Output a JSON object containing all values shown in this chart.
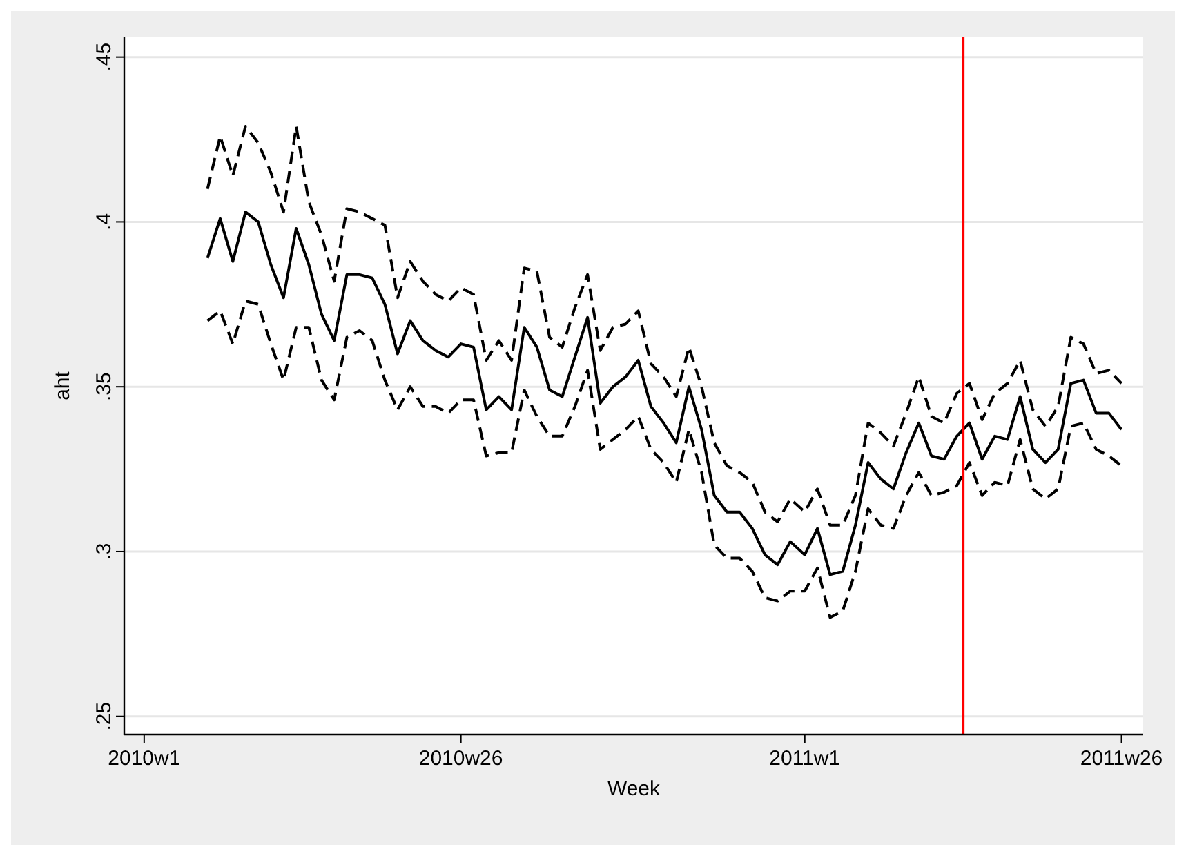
{
  "chart_data": {
    "type": "line",
    "xlabel": "Week",
    "ylabel": "aht",
    "x": [
      "2010-02-05",
      "2010-02-12",
      "2010-02-19",
      "2010-02-26",
      "2010-03-05",
      "2010-03-12",
      "2010-03-19",
      "2010-03-26",
      "2010-04-02",
      "2010-04-09",
      "2010-04-16",
      "2010-04-23",
      "2010-04-30",
      "2010-05-07",
      "2010-05-14",
      "2010-05-21",
      "2010-05-28",
      "2010-06-04",
      "2010-06-11",
      "2010-06-18",
      "2010-06-25",
      "2010-07-02",
      "2010-07-09",
      "2010-07-16",
      "2010-07-23",
      "2010-07-30",
      "2010-08-06",
      "2010-08-13",
      "2010-08-20",
      "2010-08-27",
      "2010-09-03",
      "2010-09-10",
      "2010-09-17",
      "2010-09-24",
      "2010-10-01",
      "2010-10-08",
      "2010-10-15",
      "2010-10-22",
      "2010-10-29",
      "2010-11-05",
      "2010-11-12",
      "2010-11-19",
      "2010-11-26",
      "2010-12-03",
      "2010-12-10",
      "2010-12-17",
      "2010-12-24",
      "2011-01-01",
      "2011-01-08",
      "2011-01-15",
      "2011-01-22",
      "2011-01-29",
      "2011-02-05",
      "2011-02-12",
      "2011-02-19",
      "2011-02-26",
      "2011-03-05",
      "2011-03-12",
      "2011-03-19",
      "2011-03-26",
      "2011-04-02",
      "2011-04-09",
      "2011-04-16",
      "2011-04-23",
      "2011-04-30",
      "2011-05-07",
      "2011-05-14",
      "2011-05-21",
      "2011-05-28",
      "2011-06-04",
      "2011-06-11",
      "2011-06-18",
      "2011-06-25"
    ],
    "series": [
      {
        "color": "#000000",
        "line_style": "solid",
        "values": [
          0.389,
          0.401,
          0.388,
          0.403,
          0.4,
          0.387,
          0.377,
          0.398,
          0.387,
          0.372,
          0.364,
          0.384,
          0.384,
          0.383,
          0.375,
          0.36,
          0.37,
          0.364,
          0.361,
          0.359,
          0.363,
          0.362,
          0.343,
          0.347,
          0.343,
          0.368,
          0.362,
          0.349,
          0.347,
          0.359,
          0.371,
          0.345,
          0.35,
          0.353,
          0.358,
          0.344,
          0.339,
          0.333,
          0.35,
          0.337,
          0.317,
          0.312,
          0.312,
          0.307,
          0.299,
          0.296,
          0.303,
          0.299,
          0.307,
          0.293,
          0.294,
          0.308,
          0.327,
          0.322,
          0.319,
          0.33,
          0.339,
          0.329,
          0.328,
          0.335,
          0.339,
          0.328,
          0.335,
          0.334,
          0.347,
          0.331,
          0.327,
          0.331,
          0.351,
          0.352,
          0.342,
          0.342,
          0.337
        ]
      },
      {
        "color": "#000000",
        "line_style": "dashed",
        "values": [
          0.41,
          0.426,
          0.414,
          0.429,
          0.424,
          0.415,
          0.403,
          0.429,
          0.406,
          0.396,
          0.382,
          0.404,
          0.403,
          0.401,
          0.399,
          0.377,
          0.388,
          0.382,
          0.378,
          0.376,
          0.38,
          0.378,
          0.358,
          0.364,
          0.358,
          0.386,
          0.385,
          0.365,
          0.362,
          0.374,
          0.384,
          0.361,
          0.368,
          0.369,
          0.373,
          0.357,
          0.353,
          0.347,
          0.362,
          0.35,
          0.333,
          0.326,
          0.324,
          0.321,
          0.312,
          0.309,
          0.316,
          0.312,
          0.319,
          0.308,
          0.308,
          0.317,
          0.339,
          0.336,
          0.332,
          0.342,
          0.353,
          0.341,
          0.339,
          0.348,
          0.351,
          0.34,
          0.348,
          0.351,
          0.358,
          0.343,
          0.338,
          0.344,
          0.365,
          0.363,
          0.354,
          0.355,
          0.351
        ]
      },
      {
        "color": "#000000",
        "line_style": "dashed",
        "values": [
          0.37,
          0.373,
          0.363,
          0.376,
          0.375,
          0.363,
          0.352,
          0.368,
          0.368,
          0.352,
          0.346,
          0.365,
          0.367,
          0.364,
          0.352,
          0.343,
          0.35,
          0.344,
          0.344,
          0.342,
          0.346,
          0.346,
          0.329,
          0.33,
          0.33,
          0.349,
          0.341,
          0.335,
          0.335,
          0.344,
          0.355,
          0.331,
          0.334,
          0.337,
          0.341,
          0.331,
          0.327,
          0.321,
          0.337,
          0.324,
          0.302,
          0.298,
          0.298,
          0.294,
          0.286,
          0.285,
          0.288,
          0.288,
          0.295,
          0.28,
          0.282,
          0.294,
          0.313,
          0.308,
          0.307,
          0.317,
          0.324,
          0.317,
          0.318,
          0.32,
          0.327,
          0.317,
          0.321,
          0.32,
          0.334,
          0.319,
          0.316,
          0.319,
          0.338,
          0.339,
          0.331,
          0.329,
          0.326
        ]
      }
    ],
    "xlim": [
      "2009-12-21",
      "2011-07-07"
    ],
    "xticks": [
      {
        "value": "2010-01-01",
        "label": "2010w1"
      },
      {
        "value": "2010-06-25",
        "label": "2010w26"
      },
      {
        "value": "2011-01-01",
        "label": "2011w1"
      },
      {
        "value": "2011-06-25",
        "label": "2011w26"
      }
    ],
    "ylim": [
      0.2445,
      0.456
    ],
    "yticks": [
      {
        "value": 0.25,
        "label": ".25"
      },
      {
        "value": 0.3,
        "label": ".3"
      },
      {
        "value": 0.35,
        "label": ".35"
      },
      {
        "value": 0.4,
        "label": ".4"
      },
      {
        "value": 0.45,
        "label": ".45"
      }
    ],
    "ref_lines": [
      {
        "axis": "x",
        "value": "2011-03-29T12:00",
        "color": "#ff0000"
      }
    ],
    "grid": "y",
    "marker": "none"
  }
}
